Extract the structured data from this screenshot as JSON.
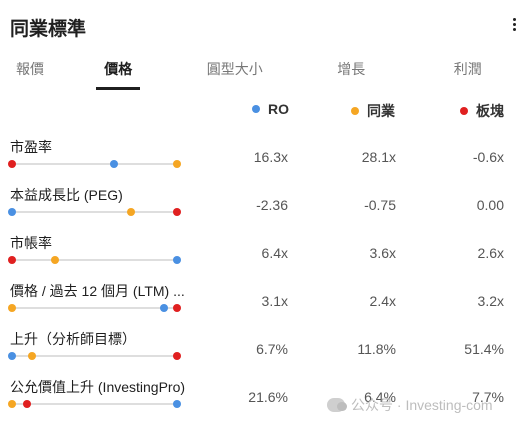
{
  "header": {
    "title": "同業標準"
  },
  "tabs": [
    {
      "label": "報價",
      "active": false
    },
    {
      "label": "價格",
      "active": true
    },
    {
      "label": "圓型大小",
      "active": false
    },
    {
      "label": "增長",
      "active": false
    },
    {
      "label": "利潤",
      "active": false
    }
  ],
  "legend": [
    {
      "label": "RO",
      "color": "#4a90e2"
    },
    {
      "label": "同業",
      "color": "#f5a623"
    },
    {
      "label": "板塊",
      "color": "#e02020"
    }
  ],
  "rows": [
    {
      "label": "市盈率",
      "ro": "16.3x",
      "peers": "28.1x",
      "sector": "-0.6x",
      "positions": {
        "ro": 0.62,
        "peers": 1.0,
        "sector": 0.0
      }
    },
    {
      "label": "本益成長比 (PEG)",
      "ro": "-2.36",
      "peers": "-0.75",
      "sector": "0.00",
      "positions": {
        "ro": 0.0,
        "peers": 0.72,
        "sector": 1.0
      }
    },
    {
      "label": "市帳率",
      "ro": "6.4x",
      "peers": "3.6x",
      "sector": "2.6x",
      "positions": {
        "ro": 1.0,
        "peers": 0.26,
        "sector": 0.0
      }
    },
    {
      "label": "價格 / 過去 12 個月 (LTM) ...",
      "ro": "3.1x",
      "peers": "2.4x",
      "sector": "3.2x",
      "positions": {
        "ro": 0.92,
        "peers": 0.0,
        "sector": 1.0
      }
    },
    {
      "label": "上升（分析師目標）",
      "ro": "6.7%",
      "peers": "11.8%",
      "sector": "51.4%",
      "positions": {
        "ro": 0.0,
        "peers": 0.12,
        "sector": 1.0
      }
    },
    {
      "label": "公允價值上升 (InvestingPro)",
      "ro": "21.6%",
      "peers": "6.4%",
      "sector": "7.7%",
      "positions": {
        "ro": 1.0,
        "peers": 0.0,
        "sector": 0.09
      }
    }
  ],
  "watermark": {
    "text": "公众号 · Investing-com"
  }
}
